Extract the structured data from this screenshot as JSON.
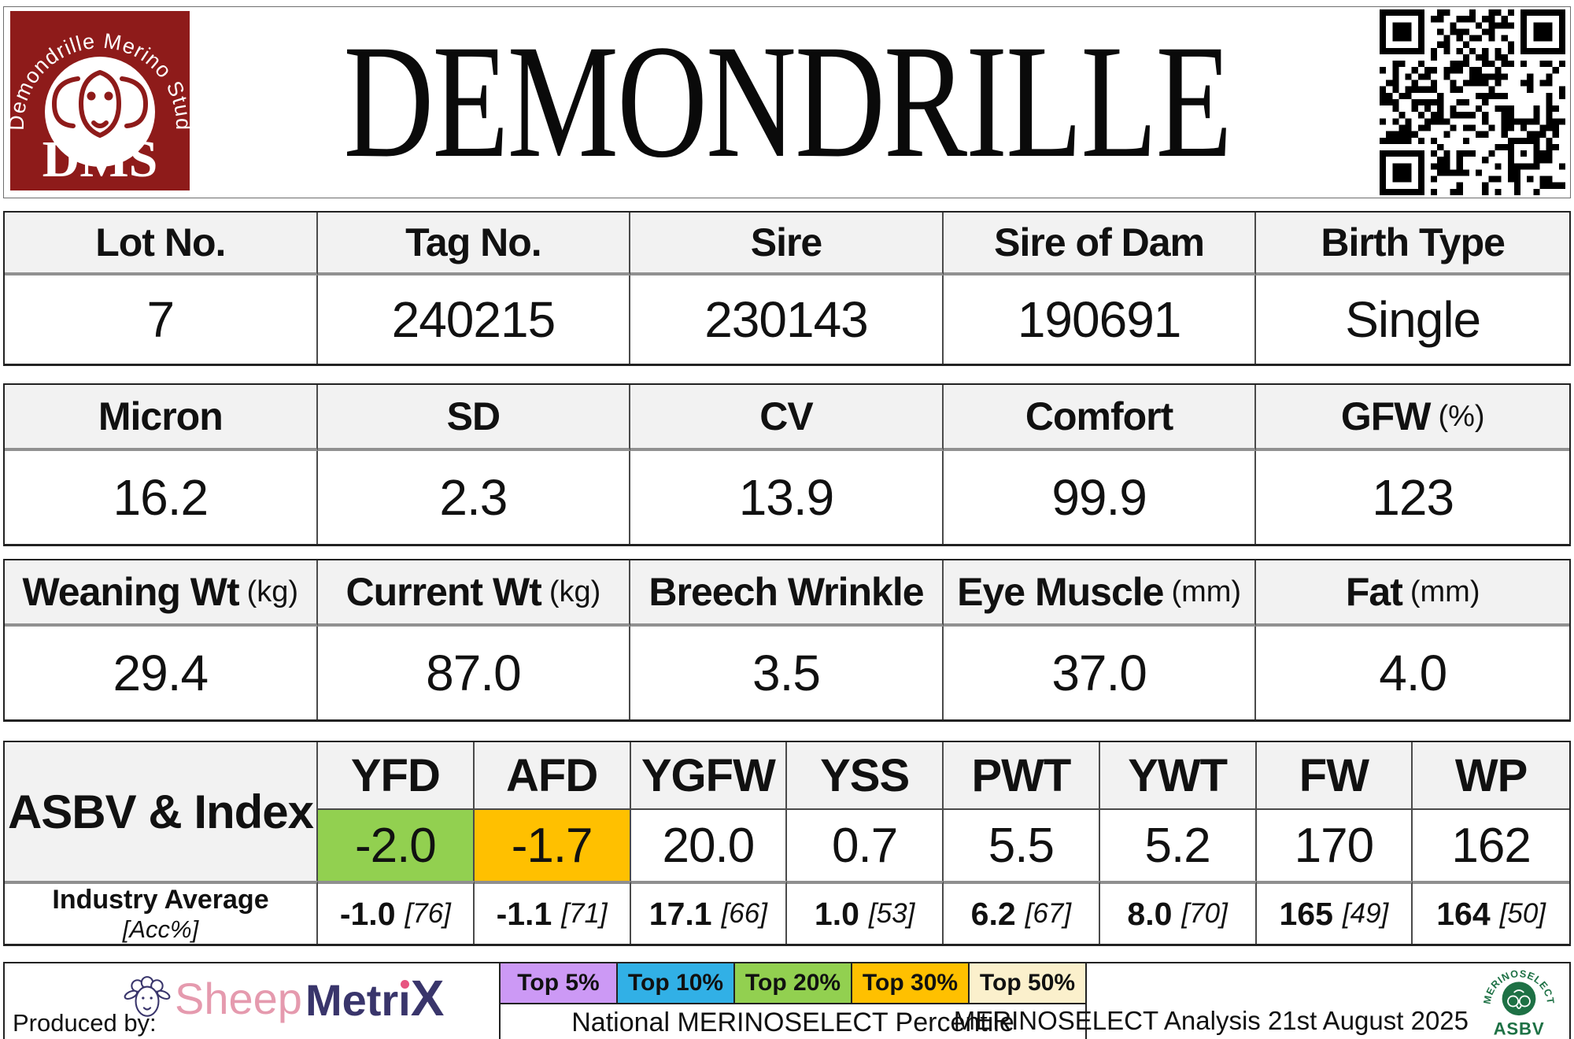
{
  "header": {
    "title": "DEMONDRILLE",
    "logo": {
      "arc_text": "Demondrille Merino Stud",
      "acronym": "DMS"
    }
  },
  "table_identity": {
    "headers": [
      "Lot No.",
      "Tag No.",
      "Sire",
      "Sire of Dam",
      "Birth Type"
    ],
    "values": [
      "7",
      "240215",
      "230143",
      "190691",
      "Single"
    ]
  },
  "table_wool": {
    "headers": [
      {
        "label": "Micron",
        "unit": ""
      },
      {
        "label": "SD",
        "unit": ""
      },
      {
        "label": "CV",
        "unit": ""
      },
      {
        "label": "Comfort",
        "unit": ""
      },
      {
        "label": "GFW",
        "unit": "(%)"
      }
    ],
    "values": [
      "16.2",
      "2.3",
      "13.9",
      "99.9",
      "123"
    ]
  },
  "table_body": {
    "headers": [
      {
        "label": "Weaning Wt",
        "unit": "(kg)"
      },
      {
        "label": "Current Wt",
        "unit": "(kg)"
      },
      {
        "label": "Breech Wrinkle",
        "unit": ""
      },
      {
        "label": "Eye Muscle",
        "unit": "(mm)"
      },
      {
        "label": "Fat",
        "unit": "(mm)"
      }
    ],
    "values": [
      "29.4",
      "87.0",
      "3.5",
      "37.0",
      "4.0"
    ]
  },
  "asbv": {
    "row_label": "ASBV & Index",
    "industry_label": "Industry Average",
    "industry_sub": "[Acc%]",
    "columns": [
      {
        "code": "YFD",
        "value": "-2.0",
        "highlight": "#92D050",
        "industry": "-1.0",
        "acc": "[76]"
      },
      {
        "code": "AFD",
        "value": "-1.7",
        "highlight": "#FFC000",
        "industry": "-1.1",
        "acc": "[71]"
      },
      {
        "code": "YGFW",
        "value": "20.0",
        "highlight": "",
        "industry": "17.1",
        "acc": "[66]"
      },
      {
        "code": "YSS",
        "value": "0.7",
        "highlight": "",
        "industry": "1.0",
        "acc": "[53]"
      },
      {
        "code": "PWT",
        "value": "5.5",
        "highlight": "",
        "industry": "6.2",
        "acc": "[67]"
      },
      {
        "code": "YWT",
        "value": "5.2",
        "highlight": "",
        "industry": "8.0",
        "acc": "[70]"
      },
      {
        "code": "FW",
        "value": "170",
        "highlight": "",
        "industry": "165",
        "acc": "[49]"
      },
      {
        "code": "WP",
        "value": "162",
        "highlight": "",
        "industry": "164",
        "acc": "[50]"
      }
    ]
  },
  "footer": {
    "produced_by": "Produced by:",
    "brand_part1": "Sheep",
    "brand_part2_a": "Metr",
    "brand_part2_x": "X",
    "legend": [
      {
        "label": "Top 5%",
        "color": "#CC99F5"
      },
      {
        "label": "Top 10%",
        "color": "#31B0E6"
      },
      {
        "label": "Top 20%",
        "color": "#92D050"
      },
      {
        "label": "Top 30%",
        "color": "#FFC000"
      },
      {
        "label": "Top 50%",
        "color": "#FBF0CC"
      }
    ],
    "legend_caption": "National MERINOSELECT Percentile",
    "analysis_note": "MERINOSELECT Analysis 21st August 2025",
    "asbv_logo_arc": "MERINOSELECT",
    "asbv_logo_label": "ASBV"
  },
  "colors": {
    "brand_red": "#8E1B1A",
    "header_fill": "#F2F2F2",
    "ms_green": "#1E7145"
  }
}
